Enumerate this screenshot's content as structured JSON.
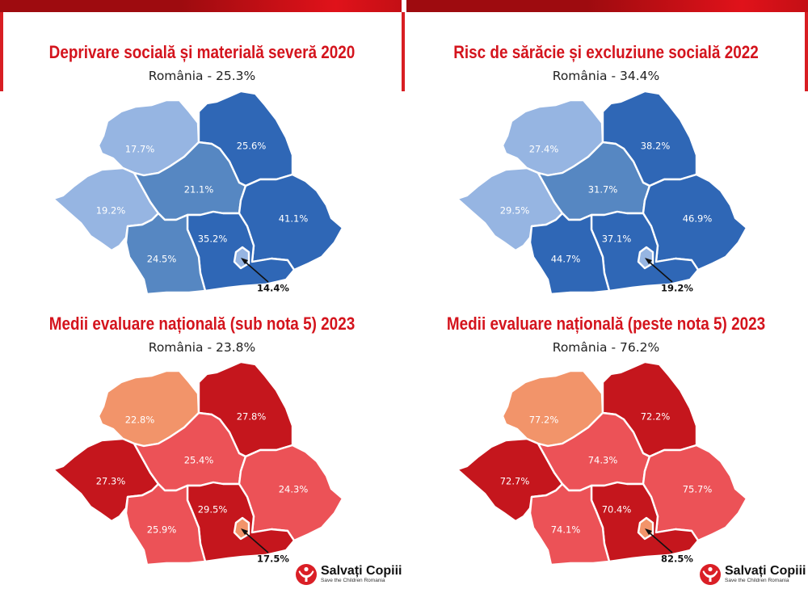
{
  "colors": {
    "blue_light": "#96b5e2",
    "blue_mid": "#5687c2",
    "blue_dark": "#2f67b6",
    "red_light": "#f2946a",
    "red_mid": "#ec5257",
    "red_dark": "#c5161d",
    "title_red": "#d4141d"
  },
  "panels": [
    {
      "title": "Deprivare socială și materială severă 2020",
      "subtitle": "România - 25.3%",
      "regions": [
        {
          "name": "Nord-Vest",
          "value": "17.7%",
          "shade": "light"
        },
        {
          "name": "Nord-Est",
          "value": "25.6%",
          "shade": "dark"
        },
        {
          "name": "Centru",
          "value": "21.1%",
          "shade": "mid"
        },
        {
          "name": "Vest",
          "value": "19.2%",
          "shade": "light"
        },
        {
          "name": "Sud-Est",
          "value": "41.1%",
          "shade": "dark"
        },
        {
          "name": "Sud-Muntenia",
          "value": "35.2%",
          "shade": "dark"
        },
        {
          "name": "Sud-Vest Oltenia",
          "value": "24.5%",
          "shade": "mid"
        },
        {
          "name": "București-Ilfov",
          "value": "14.4%",
          "shade": "light"
        }
      ]
    },
    {
      "title": "Risc de sărăcie și excluziune socială 2022",
      "subtitle": "România - 34.4%",
      "regions": [
        {
          "name": "Nord-Vest",
          "value": "27.4%",
          "shade": "light"
        },
        {
          "name": "Nord-Est",
          "value": "38.2%",
          "shade": "dark"
        },
        {
          "name": "Centru",
          "value": "31.7%",
          "shade": "mid"
        },
        {
          "name": "Vest",
          "value": "29.5%",
          "shade": "light"
        },
        {
          "name": "Sud-Est",
          "value": "46.9%",
          "shade": "dark"
        },
        {
          "name": "Sud-Muntenia",
          "value": "37.1%",
          "shade": "dark"
        },
        {
          "name": "Sud-Vest Oltenia",
          "value": "44.7%",
          "shade": "dark"
        },
        {
          "name": "București-Ilfov",
          "value": "19.2%",
          "shade": "light"
        }
      ]
    },
    {
      "title": "Medii evaluare națională (sub nota 5) 2023",
      "subtitle": "România - 23.8%",
      "regions": [
        {
          "name": "Nord-Vest",
          "value": "22.8%",
          "shade": "light"
        },
        {
          "name": "Nord-Est",
          "value": "27.8%",
          "shade": "dark"
        },
        {
          "name": "Centru",
          "value": "25.4%",
          "shade": "mid"
        },
        {
          "name": "Vest",
          "value": "27.3%",
          "shade": "dark"
        },
        {
          "name": "Sud-Est",
          "value": "24.3%",
          "shade": "mid"
        },
        {
          "name": "Sud-Muntenia",
          "value": "29.5%",
          "shade": "dark"
        },
        {
          "name": "Sud-Vest Oltenia",
          "value": "25.9%",
          "shade": "mid"
        },
        {
          "name": "București-Ilfov",
          "value": "17.5%",
          "shade": "light"
        }
      ]
    },
    {
      "title": "Medii evaluare națională (peste nota 5) 2023",
      "subtitle": "România - 76.2%",
      "regions": [
        {
          "name": "Nord-Vest",
          "value": "77.2%",
          "shade": "light"
        },
        {
          "name": "Nord-Est",
          "value": "72.2%",
          "shade": "dark"
        },
        {
          "name": "Centru",
          "value": "74.3%",
          "shade": "mid"
        },
        {
          "name": "Vest",
          "value": "72.7%",
          "shade": "dark"
        },
        {
          "name": "Sud-Est",
          "value": "75.7%",
          "shade": "mid"
        },
        {
          "name": "Sud-Muntenia",
          "value": "70.4%",
          "shade": "dark"
        },
        {
          "name": "Sud-Vest Oltenia",
          "value": "74.1%",
          "shade": "mid"
        },
        {
          "name": "București-Ilfov",
          "value": "82.5%",
          "shade": "light"
        }
      ]
    }
  ],
  "logo": {
    "name": "Salvați Copiii",
    "tagline": "Save the Children Romania",
    "icon": "save-the-children-icon"
  }
}
